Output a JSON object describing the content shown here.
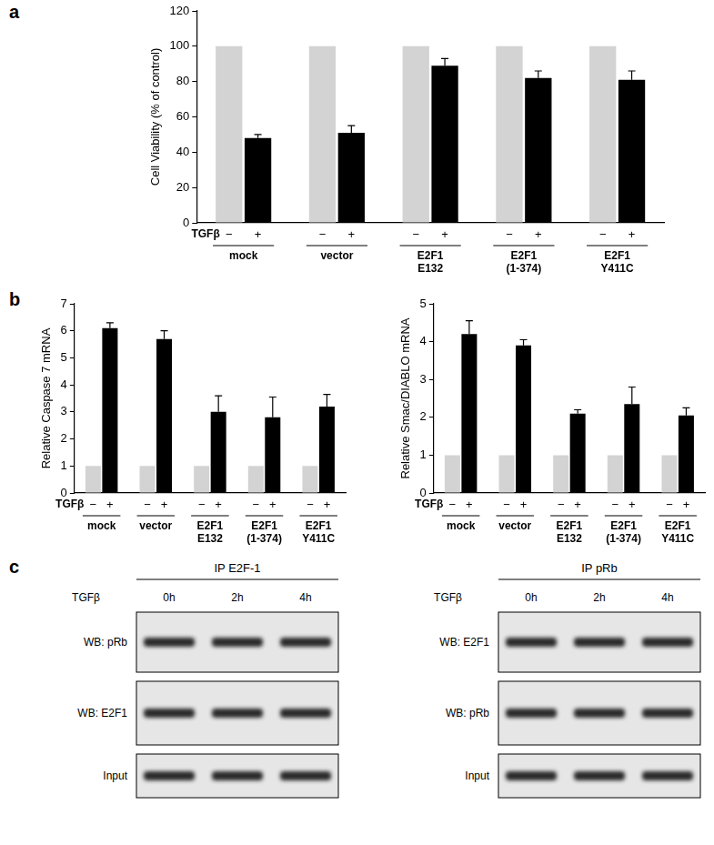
{
  "panel_labels": [
    "a",
    "b",
    "c"
  ],
  "chart_data": [
    {
      "type": "bar",
      "y_label": "Cell Viability (% of control)",
      "annotations": [
        "TGFβ"
      ],
      "categories": [
        "mock",
        "vector",
        [
          "E2F1",
          "E132"
        ],
        [
          "E2F1",
          "(1-374)"
        ],
        [
          "E2F1",
          "Y411C"
        ]
      ],
      "series": [
        {
          "name": "−",
          "color": "#d3d3d3",
          "values": [
            100,
            100,
            100,
            100,
            100
          ]
        },
        {
          "name": "+",
          "color": "#000000",
          "values": [
            48,
            51,
            89,
            82,
            81
          ],
          "errors": [
            2,
            4,
            4,
            4,
            5
          ]
        }
      ],
      "ylim": [
        0,
        120
      ],
      "yticks": [
        0,
        20,
        40,
        60,
        80,
        100,
        120
      ],
      "grid": false
    },
    {
      "type": "bar",
      "y_label": "Relative Caspase 7 mRNA",
      "annotations": [
        "TGFβ"
      ],
      "categories": [
        "mock",
        "vector",
        [
          "E2F1",
          "E132"
        ],
        [
          "E2F1",
          "(1-374)"
        ],
        [
          "E2F1",
          "Y411C"
        ]
      ],
      "series": [
        {
          "name": "−",
          "color": "#d3d3d3",
          "values": [
            1,
            1,
            1,
            1,
            1
          ]
        },
        {
          "name": "+",
          "color": "#000000",
          "values": [
            6.1,
            5.7,
            3.0,
            2.8,
            3.2
          ],
          "errors": [
            0.2,
            0.3,
            0.6,
            0.75,
            0.45
          ]
        }
      ],
      "ylim": [
        0,
        7
      ],
      "yticks": [
        0,
        1,
        2,
        3,
        4,
        5,
        6,
        7
      ],
      "grid": false
    },
    {
      "type": "bar",
      "y_label": "Relative Smac/DIABLO mRNA",
      "annotations": [
        "TGFβ"
      ],
      "categories": [
        "mock",
        "vector",
        [
          "E2F1",
          "E132"
        ],
        [
          "E2F1",
          "(1-374)"
        ],
        [
          "E2F1",
          "Y411C"
        ]
      ],
      "series": [
        {
          "name": "−",
          "color": "#d3d3d3",
          "values": [
            1,
            1,
            1,
            1,
            1
          ]
        },
        {
          "name": "+",
          "color": "#000000",
          "values": [
            4.2,
            3.9,
            2.1,
            2.35,
            2.05
          ],
          "errors": [
            0.35,
            0.15,
            0.1,
            0.45,
            0.2
          ]
        }
      ],
      "ylim": [
        0,
        5
      ],
      "yticks": [
        0,
        1,
        2,
        3,
        4,
        5
      ],
      "grid": false
    }
  ],
  "blots": [
    {
      "title": "IP  E2F-1",
      "condition": "TGFβ",
      "lanes": [
        "0h",
        "2h",
        "4h"
      ],
      "rows": [
        "WB: pRb",
        "WB: E2F1",
        "Input"
      ]
    },
    {
      "title": "IP  pRb",
      "condition": "TGFβ",
      "lanes": [
        "0h",
        "2h",
        "4h"
      ],
      "rows": [
        "WB: E2F1",
        "WB: pRb",
        "Input"
      ]
    }
  ]
}
